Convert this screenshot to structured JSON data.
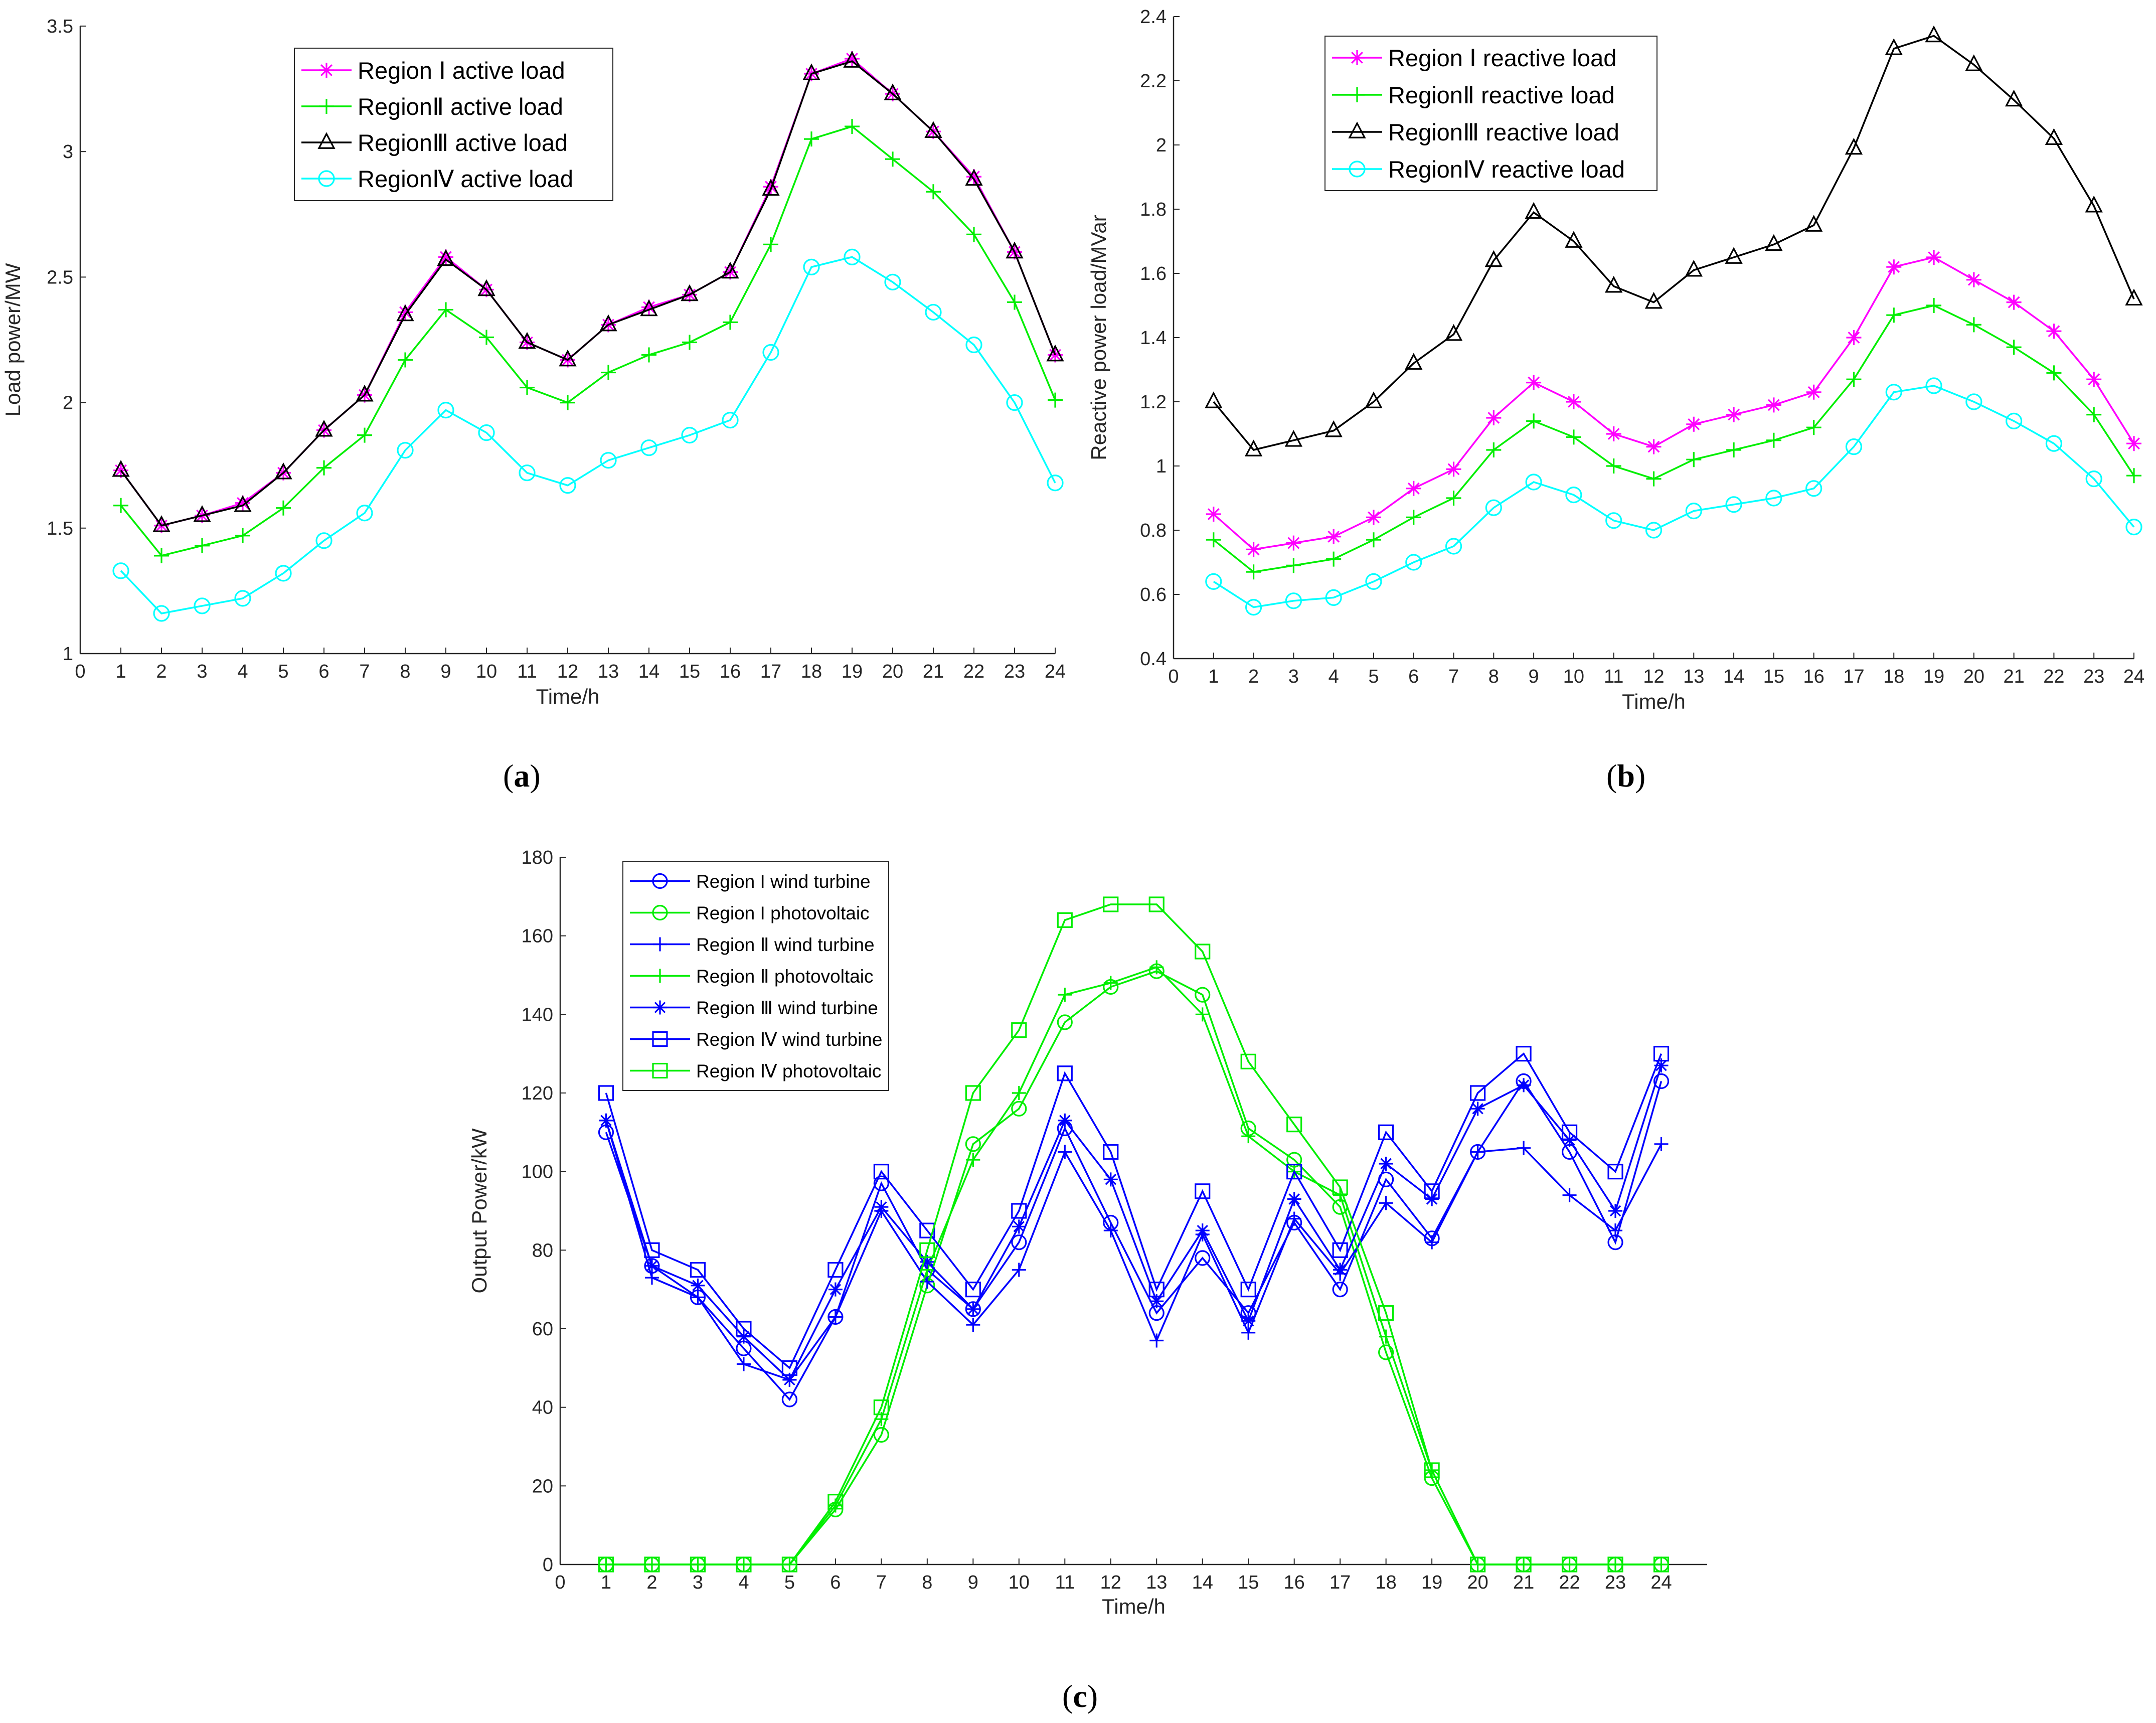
{
  "chart_data": [
    {
      "id": "a",
      "type": "line",
      "panel_label": "a",
      "xlabel": "Time/h",
      "ylabel": "Load power/MW",
      "xlim": [
        0,
        24
      ],
      "ylim": [
        1,
        3.5
      ],
      "xticks": [
        0,
        1,
        2,
        3,
        4,
        5,
        6,
        7,
        8,
        9,
        10,
        11,
        12,
        13,
        14,
        15,
        16,
        17,
        18,
        19,
        20,
        21,
        22,
        23,
        24
      ],
      "yticks": [
        1,
        1.5,
        2,
        2.5,
        3,
        3.5
      ],
      "yticklabels": [
        "1",
        "1.5",
        "2",
        "2.5",
        "3",
        "3.5"
      ],
      "legend_position": "top-center",
      "x": [
        1,
        2,
        3,
        4,
        5,
        6,
        7,
        8,
        9,
        10,
        11,
        12,
        13,
        14,
        15,
        16,
        17,
        18,
        19,
        20,
        21,
        22,
        23,
        24
      ],
      "series": [
        {
          "name": "Region Ⅰ active load",
          "color": "#ff00ff",
          "marker": "star",
          "values": [
            1.73,
            1.51,
            1.55,
            1.6,
            1.72,
            1.89,
            2.03,
            2.36,
            2.58,
            2.45,
            2.24,
            2.17,
            2.31,
            2.38,
            2.43,
            2.52,
            2.86,
            3.31,
            3.37,
            3.23,
            3.08,
            2.9,
            2.6,
            2.19
          ]
        },
        {
          "name": "RegionⅡ active load",
          "color": "#00ee00",
          "marker": "plus",
          "values": [
            1.59,
            1.39,
            1.43,
            1.47,
            1.58,
            1.74,
            1.87,
            2.17,
            2.37,
            2.26,
            2.06,
            2.0,
            2.12,
            2.19,
            2.24,
            2.32,
            2.63,
            3.05,
            3.1,
            2.97,
            2.84,
            2.67,
            2.4,
            2.01
          ]
        },
        {
          "name": "RegionⅢ active load",
          "color": "#000000",
          "marker": "triangle",
          "values": [
            1.73,
            1.51,
            1.55,
            1.59,
            1.72,
            1.89,
            2.03,
            2.35,
            2.57,
            2.45,
            2.24,
            2.17,
            2.31,
            2.37,
            2.43,
            2.52,
            2.85,
            3.31,
            3.36,
            3.23,
            3.08,
            2.89,
            2.6,
            2.19
          ]
        },
        {
          "name": "RegionⅣ active load",
          "color": "#00ffff",
          "marker": "circle",
          "values": [
            1.33,
            1.16,
            1.19,
            1.22,
            1.32,
            1.45,
            1.56,
            1.81,
            1.97,
            1.88,
            1.72,
            1.67,
            1.77,
            1.82,
            1.87,
            1.93,
            2.2,
            2.54,
            2.58,
            2.48,
            2.36,
            2.23,
            2.0,
            1.68
          ]
        }
      ]
    },
    {
      "id": "b",
      "type": "line",
      "panel_label": "b",
      "xlabel": "Time/h",
      "ylabel": "Reactive power load/MVar",
      "xlim": [
        0,
        24
      ],
      "ylim": [
        0.4,
        2.4
      ],
      "xticks": [
        0,
        1,
        2,
        3,
        4,
        5,
        6,
        7,
        8,
        9,
        10,
        11,
        12,
        13,
        14,
        15,
        16,
        17,
        18,
        19,
        20,
        21,
        22,
        23,
        24
      ],
      "yticks": [
        0.4,
        0.6,
        0.8,
        1,
        1.2,
        1.4,
        1.6,
        1.8,
        2,
        2.2,
        2.4
      ],
      "yticklabels": [
        "0.4",
        "0.6",
        "0.8",
        "1",
        "1.2",
        "1.4",
        "1.6",
        "1.8",
        "2",
        "2.2",
        "2.4"
      ],
      "legend_position": "top-center",
      "x": [
        1,
        2,
        3,
        4,
        5,
        6,
        7,
        8,
        9,
        10,
        11,
        12,
        13,
        14,
        15,
        16,
        17,
        18,
        19,
        20,
        21,
        22,
        23,
        24
      ],
      "series": [
        {
          "name": "Region Ⅰ reactive load",
          "color": "#ff00ff",
          "marker": "star",
          "values": [
            0.85,
            0.74,
            0.76,
            0.78,
            0.84,
            0.93,
            0.99,
            1.15,
            1.26,
            1.2,
            1.1,
            1.06,
            1.13,
            1.16,
            1.19,
            1.23,
            1.4,
            1.62,
            1.65,
            1.58,
            1.51,
            1.42,
            1.27,
            1.07
          ]
        },
        {
          "name": "RegionⅡ reactive load",
          "color": "#00ee00",
          "marker": "plus",
          "values": [
            0.77,
            0.67,
            0.69,
            0.71,
            0.77,
            0.84,
            0.9,
            1.05,
            1.14,
            1.09,
            1.0,
            0.96,
            1.02,
            1.05,
            1.08,
            1.12,
            1.27,
            1.47,
            1.5,
            1.44,
            1.37,
            1.29,
            1.16,
            0.97
          ]
        },
        {
          "name": "RegionⅢ reactive load",
          "color": "#000000",
          "marker": "triangle",
          "values": [
            1.2,
            1.05,
            1.08,
            1.11,
            1.2,
            1.32,
            1.41,
            1.64,
            1.79,
            1.7,
            1.56,
            1.51,
            1.61,
            1.65,
            1.69,
            1.75,
            1.99,
            2.3,
            2.34,
            2.25,
            2.14,
            2.02,
            1.81,
            1.52
          ]
        },
        {
          "name": "RegionⅣ reactive load",
          "color": "#00ffff",
          "marker": "circle",
          "values": [
            0.64,
            0.56,
            0.58,
            0.59,
            0.64,
            0.7,
            0.75,
            0.87,
            0.95,
            0.91,
            0.83,
            0.8,
            0.86,
            0.88,
            0.9,
            0.93,
            1.06,
            1.23,
            1.25,
            1.2,
            1.14,
            1.07,
            0.96,
            0.81
          ]
        }
      ]
    },
    {
      "id": "c",
      "type": "line",
      "panel_label": "c",
      "xlabel": "Time/h",
      "ylabel": "Output Power/kW",
      "xlim": [
        0,
        25
      ],
      "ylim": [
        0,
        180
      ],
      "xticks": [
        0,
        1,
        2,
        3,
        4,
        5,
        6,
        7,
        8,
        9,
        10,
        11,
        12,
        13,
        14,
        15,
        16,
        17,
        18,
        19,
        20,
        21,
        22,
        23,
        24
      ],
      "yticks": [
        0,
        20,
        40,
        60,
        80,
        100,
        120,
        140,
        160,
        180
      ],
      "yticklabels": [
        "0",
        "20",
        "40",
        "60",
        "80",
        "100",
        "120",
        "140",
        "160",
        "180"
      ],
      "legend_position": "top-left",
      "x": [
        1,
        2,
        3,
        4,
        5,
        6,
        7,
        8,
        9,
        10,
        11,
        12,
        13,
        14,
        15,
        16,
        17,
        18,
        19,
        20,
        21,
        22,
        23,
        24
      ],
      "series": [
        {
          "name": "Region I wind turbine",
          "color": "#0000ff",
          "marker": "circle",
          "values": [
            110,
            76,
            68,
            55,
            42,
            63,
            97,
            75,
            65,
            82,
            111,
            87,
            64,
            78,
            64,
            87,
            70,
            98,
            83,
            105,
            123,
            105,
            82,
            123
          ]
        },
        {
          "name": "Region I photovoltaic",
          "color": "#00ee00",
          "marker": "circle",
          "values": [
            0,
            0,
            0,
            0,
            0,
            14,
            33,
            71,
            107,
            116,
            138,
            147,
            151,
            145,
            111,
            103,
            91,
            54,
            22,
            0,
            0,
            0,
            0,
            0
          ]
        },
        {
          "name": "Region Ⅱ wind turbine",
          "color": "#0000ff",
          "marker": "plus",
          "values": [
            113,
            73,
            68,
            51,
            47,
            63,
            90,
            72,
            61,
            75,
            105,
            85,
            57,
            84,
            59,
            88,
            74,
            92,
            82,
            105,
            106,
            94,
            85,
            107
          ]
        },
        {
          "name": "Region Ⅱ photovoltaic",
          "color": "#00ee00",
          "marker": "plus",
          "values": [
            0,
            0,
            0,
            0,
            0,
            15,
            37,
            75,
            103,
            120,
            145,
            148,
            152,
            140,
            109,
            100,
            94,
            58,
            24,
            0,
            0,
            0,
            0,
            0
          ]
        },
        {
          "name": "Region Ⅲ wind turbine",
          "color": "#0000ff",
          "marker": "star",
          "values": [
            113,
            76,
            71,
            58,
            47,
            70,
            91,
            77,
            65,
            86,
            113,
            98,
            67,
            85,
            62,
            93,
            75,
            102,
            93,
            116,
            122,
            108,
            90,
            127
          ]
        },
        {
          "name": "Region Ⅳ wind turbine",
          "color": "#0000ff",
          "marker": "square",
          "values": [
            120,
            80,
            75,
            60,
            50,
            75,
            100,
            85,
            70,
            90,
            125,
            105,
            70,
            95,
            70,
            100,
            80,
            110,
            95,
            120,
            130,
            110,
            100,
            130
          ]
        },
        {
          "name": "Region Ⅳ photovoltaic",
          "color": "#00ee00",
          "marker": "square",
          "values": [
            0,
            0,
            0,
            0,
            0,
            16,
            40,
            80,
            120,
            136,
            164,
            168,
            168,
            156,
            128,
            112,
            96,
            64,
            24,
            0,
            0,
            0,
            0,
            0
          ]
        }
      ]
    }
  ]
}
